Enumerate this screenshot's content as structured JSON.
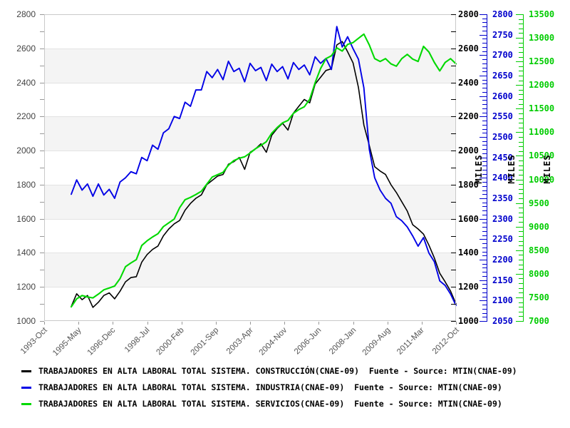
{
  "chart_data": {
    "type": "line",
    "title": "",
    "x_axis": {
      "start_year": 1993.75,
      "end_year": 2012.75,
      "ticks": [
        "1993-Oct",
        "1995-May",
        "1996-Dec",
        "1998-Jul",
        "2000-Feb",
        "2001-Sep",
        "2003-Apr",
        "2004-Nov",
        "2006-Jun",
        "2008-Jan",
        "2009-Aug",
        "2011-Mar",
        "2012-Oct"
      ]
    },
    "axes": {
      "left_black": {
        "min": 1000,
        "max": 2800,
        "step": 200,
        "minor": 100,
        "text_color": "#444444",
        "label": ""
      },
      "right_black": {
        "min": 1000,
        "max": 2800,
        "step": 200,
        "minor": 100,
        "text_color": "#000000",
        "label": "MILES"
      },
      "right_blue": {
        "min": 2050,
        "max": 2800,
        "step": 50,
        "minor": 10,
        "text_color": "#0000cc",
        "label": "MILES"
      },
      "right_green": {
        "min": 7000,
        "max": 13500,
        "step": 500,
        "minor": 100,
        "text_color": "#00cc00",
        "label": "MILES"
      }
    },
    "grid": {
      "band_fill": "#f4f4f4",
      "band_line": "#e3e3e3",
      "bands_alternate": true
    },
    "legend_position": "bottom-left",
    "series": [
      {
        "name": "CONSTRUCCIÓN",
        "color": "#000000",
        "stroke_width": 1.6,
        "axis_min": 1000,
        "axis_max": 2800,
        "x_start": 1995.0,
        "x_step": 0.25,
        "values": [
          1085,
          1160,
          1125,
          1150,
          1080,
          1110,
          1150,
          1165,
          1130,
          1175,
          1230,
          1255,
          1260,
          1345,
          1390,
          1420,
          1440,
          1500,
          1540,
          1570,
          1590,
          1650,
          1690,
          1720,
          1740,
          1800,
          1825,
          1850,
          1860,
          1920,
          1935,
          1960,
          1890,
          1990,
          2010,
          2040,
          1990,
          2090,
          2130,
          2160,
          2120,
          2220,
          2260,
          2300,
          2280,
          2390,
          2430,
          2470,
          2480,
          2620,
          2640,
          2580,
          2515,
          2370,
          2150,
          2030,
          1905,
          1880,
          1860,
          1800,
          1754,
          1700,
          1645,
          1565,
          1540,
          1510,
          1445,
          1370,
          1280,
          1230,
          1175,
          1100
        ]
      },
      {
        "name": "INDUSTRIA",
        "color": "#0000e6",
        "stroke_width": 1.9,
        "axis_min": 2050,
        "axis_max": 2800,
        "x_start": 1995.0,
        "x_step": 0.25,
        "values": [
          2360,
          2395,
          2370,
          2385,
          2355,
          2385,
          2358,
          2372,
          2350,
          2390,
          2400,
          2415,
          2410,
          2450,
          2442,
          2480,
          2470,
          2510,
          2520,
          2550,
          2545,
          2585,
          2575,
          2615,
          2615,
          2660,
          2645,
          2665,
          2640,
          2685,
          2660,
          2668,
          2635,
          2680,
          2662,
          2670,
          2638,
          2678,
          2660,
          2672,
          2642,
          2682,
          2665,
          2676,
          2652,
          2696,
          2680,
          2692,
          2665,
          2770,
          2720,
          2745,
          2716,
          2690,
          2620,
          2470,
          2400,
          2370,
          2350,
          2338,
          2305,
          2295,
          2280,
          2258,
          2233,
          2254,
          2216,
          2195,
          2148,
          2137,
          2116,
          2088
        ]
      },
      {
        "name": "SERVICIOS",
        "color": "#00d900",
        "stroke_width": 2.1,
        "axis_min": 7000,
        "axis_max": 13500,
        "x_start": 1995.0,
        "x_step": 0.25,
        "values": [
          7300,
          7470,
          7540,
          7510,
          7490,
          7570,
          7660,
          7700,
          7740,
          7900,
          8150,
          8230,
          8300,
          8600,
          8700,
          8780,
          8850,
          9000,
          9080,
          9160,
          9400,
          9570,
          9620,
          9680,
          9750,
          9900,
          10050,
          10100,
          10150,
          10300,
          10400,
          10450,
          10480,
          10560,
          10650,
          10720,
          10800,
          10980,
          11100,
          11200,
          11250,
          11400,
          11480,
          11540,
          11700,
          12050,
          12350,
          12560,
          12620,
          12790,
          12720,
          12860,
          12900,
          12990,
          13080,
          12850,
          12560,
          12500,
          12560,
          12450,
          12400,
          12560,
          12650,
          12550,
          12500,
          12820,
          12700,
          12480,
          12300,
          12480,
          12560,
          12450
        ]
      }
    ]
  },
  "legend": {
    "items": [
      {
        "label": "TRABAJADORES EN ALTA LABORAL TOTAL SISTEMA. CONSTRUCCIÓN(CNAE-09)  Fuente - Source: MTIN(CNAE-09)",
        "color": "#000000"
      },
      {
        "label": "TRABAJADORES EN ALTA LABORAL TOTAL SISTEMA. INDUSTRIA(CNAE-09)  Fuente - Source: MTIN(CNAE-09)",
        "color": "#0000e6"
      },
      {
        "label": "TRABAJADORES EN ALTA LABORAL TOTAL SISTEMA. SERVICIOS(CNAE-09)  Fuente - Source: MTIN(CNAE-09)",
        "color": "#00d900"
      }
    ]
  }
}
